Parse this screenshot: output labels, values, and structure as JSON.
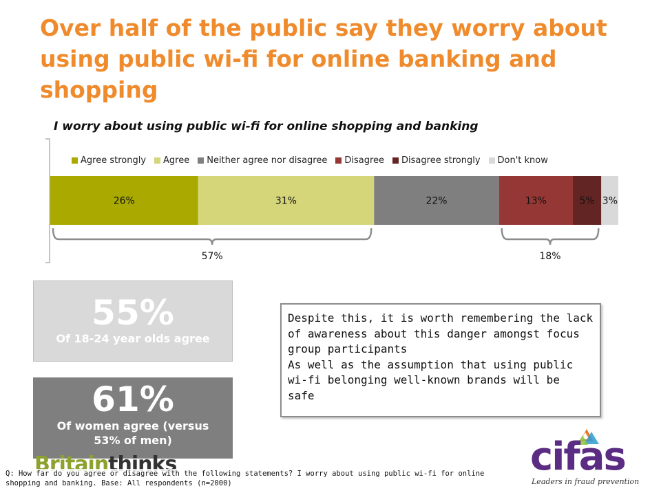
{
  "title": "Over half of the public say they worry about using public wi-fi for online banking and shopping",
  "chart_data": {
    "type": "bar",
    "orientation": "horizontal-stacked-100",
    "title": "I worry about using public wi-fi for online shopping and banking",
    "series": [
      {
        "name": "Agree strongly",
        "value": 26,
        "label": "26%",
        "color": "#A9A900"
      },
      {
        "name": "Agree",
        "value": 31,
        "label": "31%",
        "color": "#D5D57A"
      },
      {
        "name": "Neither agree nor disagree",
        "value": 22,
        "label": "22%",
        "color": "#7F7F7F"
      },
      {
        "name": "Disagree",
        "value": 13,
        "label": "13%",
        "color": "#953735"
      },
      {
        "name": "Disagree strongly",
        "value": 5,
        "label": "5%",
        "color": "#632523"
      },
      {
        "name": "Don't know",
        "value": 3,
        "label": "3%",
        "color": "#D9D9D9"
      }
    ],
    "legend_position": "top",
    "brackets": [
      {
        "label": "57%",
        "from": 0,
        "to": 1
      },
      {
        "label": "18%",
        "from": 3,
        "to": 4
      }
    ]
  },
  "stats": [
    {
      "value": "55%",
      "label": "Of 18-24 year olds agree"
    },
    {
      "value": "61%",
      "label": "Of women agree (versus 53% of men)"
    }
  ],
  "note": {
    "lines": [
      "Despite this, it is worth remembering the lack",
      "of awareness about this danger amongst focus",
      "group participants",
      "As well as the assumption that using public",
      "wi-fi belonging well-known brands will be",
      "safe"
    ]
  },
  "footnote": "Q: How far do you agree or disagree with the following statements? I worry about using public wi-fi for online shopping and banking. Base: All respondents (n=2000)",
  "logos": {
    "britainthinks_1": "Britain",
    "britainthinks_2": "thinks",
    "cifas": "cifas",
    "cifas_tagline": "Leaders in fraud prevention"
  }
}
